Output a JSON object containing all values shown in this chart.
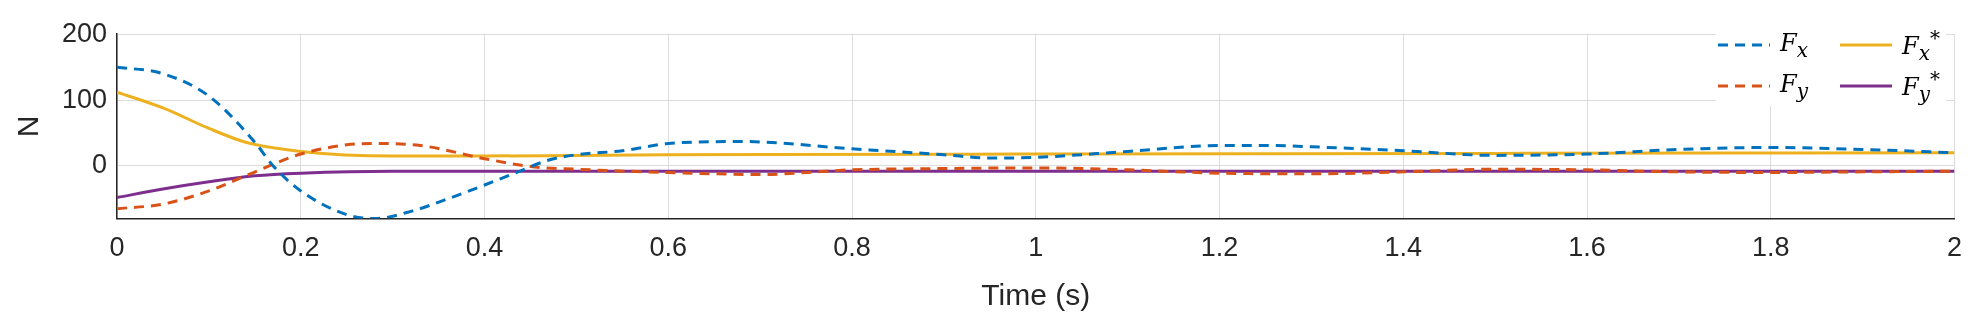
{
  "chart_data": {
    "type": "line",
    "xlabel": "Time (s)",
    "ylabel": "N",
    "xlim": [
      0,
      2
    ],
    "xticks": [
      0,
      0.2,
      0.4,
      0.6,
      0.8,
      1,
      1.2,
      1.4,
      1.6,
      1.8,
      2
    ],
    "ylim": [
      -80,
      200
    ],
    "yticks": [
      0,
      100,
      200
    ],
    "grid": true,
    "legend": "top right",
    "series": [
      {
        "name": "F$_{x}$",
        "color": "#0072bd",
        "line_style": "dashed",
        "x": [
          0,
          0.05,
          0.1,
          0.15,
          0.17,
          0.2,
          0.25,
          0.28,
          0.32,
          0.36,
          0.4,
          0.44,
          0.47,
          0.5,
          0.55,
          0.6,
          0.68,
          0.8,
          0.9,
          0.95,
          1,
          1.1,
          1.2,
          1.25,
          1.3,
          1.4,
          1.5,
          1.6,
          1.7,
          1.8,
          1.9,
          2
        ],
        "values": [
          150,
          140,
          106,
          36,
          0,
          -38,
          -74,
          -80,
          -69,
          -50,
          -29,
          -7,
          9,
          17,
          23,
          34,
          37,
          26,
          17,
          12,
          13,
          22,
          31,
          31,
          29,
          23,
          16,
          18,
          25,
          28,
          25,
          20
        ]
      },
      {
        "name": "F$_{y}$",
        "color": "#d95319",
        "line_style": "dashed",
        "x": [
          0,
          0.05,
          0.1,
          0.14,
          0.2,
          0.25,
          0.28,
          0.33,
          0.4,
          0.45,
          0.5,
          0.6,
          0.7,
          0.8,
          0.9,
          1,
          1.1,
          1.2,
          1.3,
          1.4,
          1.5,
          1.6,
          1.7,
          1.8,
          1.9,
          2
        ],
        "values": [
          -65,
          -58,
          -38,
          -15,
          18,
          32,
          34,
          31,
          11,
          -1,
          -5,
          -10,
          -13,
          -6,
          -4,
          -3,
          -6,
          -11,
          -12,
          -9,
          -5,
          -6,
          -9,
          -10,
          -9,
          -8
        ]
      },
      {
        "name": "F$_{x}$$^{*}$",
        "color": "#edb120",
        "line_style": "solid",
        "x": [
          0,
          0.05,
          0.1,
          0.14,
          0.2,
          0.3,
          0.4,
          0.5,
          0.6,
          1,
          1.5,
          2
        ],
        "values": [
          112,
          88,
          57,
          36,
          22,
          15,
          15,
          16,
          17,
          18,
          19,
          20
        ]
      },
      {
        "name": "F$_{y}$$^{*}$",
        "color": "#7e2f8e",
        "line_style": "solid",
        "x": [
          0,
          0.05,
          0.1,
          0.15,
          0.2,
          0.3,
          0.5,
          1,
          1.5,
          2
        ],
        "values": [
          -48,
          -35,
          -24,
          -15,
          -11,
          -8,
          -8,
          -8,
          -8,
          -8
        ]
      }
    ]
  }
}
